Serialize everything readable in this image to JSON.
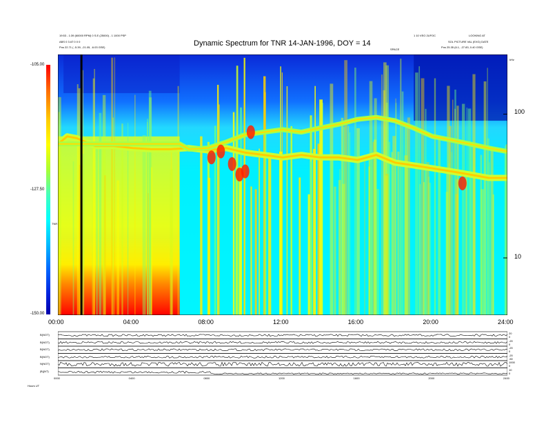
{
  "chart_data": [
    {
      "type": "heatmap",
      "title": "Dynamic Spectrum for TNR 14-JAN-1996, DOY = 14",
      "header_left": [
        "19:53 - 1:39 (60000 RPM) 0 S.E (25000) - 1 1000 PSP",
        "ABS 0 3 AT 0 0 0",
        "Pos   22.71 ( -5.39, -21.05, -6.03 GSE)"
      ],
      "header_right": [
        "1 10 VEO 2UFOC",
        "LOOKING AT",
        "SOL PICTURE VAL (EXG)  DATE",
        "Pos   25.35 (6.1, -27.83, 0.40 GSE)"
      ],
      "small_label": "SPACE",
      "colorbar": {
        "ticks": [
          "-105.00",
          "-127.50",
          "-150.00"
        ],
        "values": [
          -105.0,
          -127.5,
          -150.0
        ],
        "label": "TNR"
      },
      "yaxis": {
        "scale": "log",
        "unit_label": "kHz",
        "ticks": [
          "100",
          "10"
        ],
        "tick_values": [
          100,
          10
        ],
        "ylim": [
          4,
          260
        ]
      },
      "xaxis": {
        "ticks": [
          "00:00",
          "04:00",
          "08:00",
          "12:00",
          "16:00",
          "20:00",
          "24:00"
        ],
        "xlim": [
          0,
          24
        ]
      },
      "features": {
        "data_gap_hour": 1.2,
        "plasma_line_khz": [
          [
            0,
            62
          ],
          [
            0.5,
            70
          ],
          [
            1,
            68
          ],
          [
            2,
            60
          ],
          [
            3,
            60
          ],
          [
            4,
            58
          ],
          [
            5,
            57
          ],
          [
            6,
            57
          ],
          [
            7,
            58
          ],
          [
            8,
            56
          ],
          [
            9,
            58
          ],
          [
            10,
            54
          ],
          [
            11,
            52
          ],
          [
            12,
            50
          ],
          [
            13,
            52
          ],
          [
            14,
            50
          ],
          [
            15,
            50
          ],
          [
            16,
            48
          ],
          [
            17,
            52
          ],
          [
            18,
            46
          ],
          [
            19,
            44
          ],
          [
            20,
            42
          ],
          [
            21,
            40
          ],
          [
            22,
            38
          ],
          [
            23,
            36
          ],
          [
            24,
            36
          ]
        ],
        "harmonic_line_khz": [
          [
            0,
            62
          ],
          [
            6.5,
            62
          ],
          [
            7,
            57
          ],
          [
            8,
            58
          ],
          [
            9,
            64
          ],
          [
            10,
            72
          ],
          [
            11,
            75
          ],
          [
            12,
            78
          ],
          [
            13,
            75
          ],
          [
            14,
            80
          ],
          [
            15,
            85
          ],
          [
            16,
            92
          ],
          [
            17,
            95
          ],
          [
            18,
            90
          ],
          [
            19,
            80
          ],
          [
            20,
            70
          ],
          [
            21,
            66
          ],
          [
            22,
            62
          ],
          [
            23,
            58
          ],
          [
            24,
            55
          ]
        ]
      }
    },
    {
      "type": "line",
      "panels": [
        {
          "label": "B(NOT)",
          "right_ticks": [
            "20",
            "0"
          ]
        },
        {
          "label": "B(NOT)",
          "right_ticks": [
            "-20",
            "0"
          ]
        },
        {
          "label": "B(NOT)",
          "right_ticks": [
            "-20",
            "0"
          ]
        },
        {
          "label": "B(NOT)",
          "right_ticks": [
            "-20",
            "-50"
          ]
        },
        {
          "label": "N(NOT)",
          "right_ticks": [
            "1000",
            "0"
          ]
        },
        {
          "label": "|B|(NT)",
          "right_ticks": [
            "10",
            "0"
          ]
        }
      ],
      "xaxis": {
        "ticks": [
          "0000",
          "0400",
          "0800",
          "1200",
          "1600",
          "2000",
          "2400"
        ]
      },
      "bottom_label": "Hours  UT"
    }
  ]
}
